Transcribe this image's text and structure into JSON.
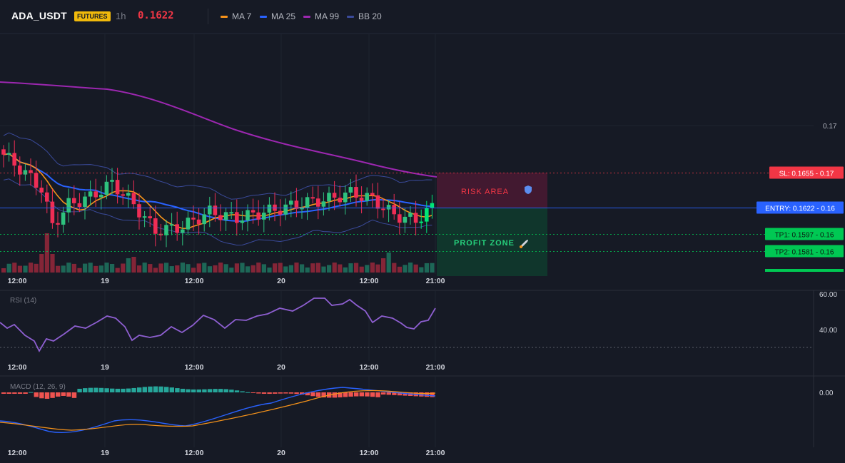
{
  "header": {
    "symbol": "ADA_USDT",
    "market_badge": "FUTURES",
    "timeframe": "1h",
    "last_price": "0.1622",
    "indicators": [
      {
        "label": "MA 7",
        "color": "#f7931a"
      },
      {
        "label": "MA 25",
        "color": "#2962ff"
      },
      {
        "label": "MA 99",
        "color": "#9c27b0"
      },
      {
        "label": "BB 20",
        "color": "#3a4a9a"
      }
    ]
  },
  "price_axis": {
    "labels": [
      "0.17"
    ]
  },
  "levels": [
    {
      "label": "SL: 0.1655",
      "axis": "0.17",
      "color": "#f23645",
      "value": 0.1655
    },
    {
      "label": "ENTRY: 0.1622",
      "axis": "0.16",
      "color": "#2962ff",
      "value": 0.1622
    },
    {
      "label": "TP1: 0.1597",
      "axis": "0.16",
      "color": "#00c853",
      "value": 0.1597
    },
    {
      "label": "TP2: 0.1581",
      "axis": "0.16",
      "color": "#00c853",
      "value": 0.1581
    }
  ],
  "zones": {
    "risk_label": "RISK AREA",
    "profit_label": "PROFIT ZONE"
  },
  "time_axis": {
    "labels": [
      "12:00",
      "19",
      "12:00",
      "20",
      "12:00",
      "21:00"
    ]
  },
  "rsi": {
    "label": "RSI (14)",
    "axis_labels": [
      "60.00",
      "40.00"
    ]
  },
  "macd": {
    "label": "MACD (12, 26, 9)",
    "axis_labels": [
      "0.00"
    ]
  },
  "colors": {
    "up": "#26a69a",
    "up_bright": "#00e676",
    "down": "#f23645",
    "background": "#161a25",
    "grid": "#1f2430"
  }
}
